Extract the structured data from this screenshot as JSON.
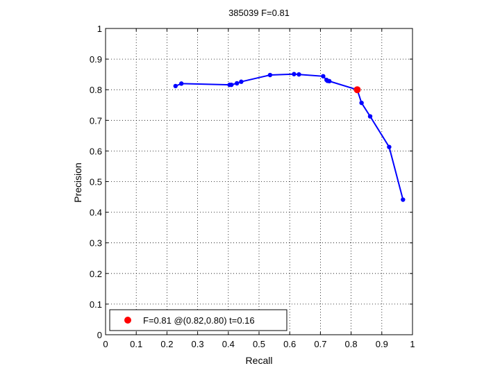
{
  "chart_data": {
    "type": "line",
    "title": "385039 F=0.81",
    "xlabel": "Recall",
    "ylabel": "Precision",
    "xlim": [
      0,
      1
    ],
    "ylim": [
      0,
      1
    ],
    "x_ticks": [
      "0",
      "0.1",
      "0.2",
      "0.3",
      "0.4",
      "0.5",
      "0.6",
      "0.7",
      "0.8",
      "0.9",
      "1"
    ],
    "y_ticks": [
      "0",
      "0.1",
      "0.2",
      "0.3",
      "0.4",
      "0.5",
      "0.6",
      "0.7",
      "0.8",
      "0.9",
      "1"
    ],
    "grid": true,
    "series": [
      {
        "color": "#0000ff",
        "marker": "dot",
        "points": [
          [
            0.228,
            0.812
          ],
          [
            0.247,
            0.82
          ],
          [
            0.404,
            0.816
          ],
          [
            0.41,
            0.816
          ],
          [
            0.428,
            0.821
          ],
          [
            0.442,
            0.826
          ],
          [
            0.536,
            0.848
          ],
          [
            0.614,
            0.851
          ],
          [
            0.63,
            0.85
          ],
          [
            0.709,
            0.844
          ],
          [
            0.72,
            0.832
          ],
          [
            0.723,
            0.829
          ],
          [
            0.729,
            0.828
          ],
          [
            0.82,
            0.8
          ],
          [
            0.834,
            0.757
          ],
          [
            0.862,
            0.713
          ],
          [
            0.924,
            0.613
          ],
          [
            0.969,
            0.441
          ]
        ]
      }
    ],
    "highlight": {
      "x": 0.82,
      "y": 0.8,
      "color": "#ff0000"
    },
    "legend": {
      "position": "bottom-left",
      "text": "F=0.81 @(0.82,0.80) t=0.16",
      "marker_color": "#ff0000"
    }
  }
}
